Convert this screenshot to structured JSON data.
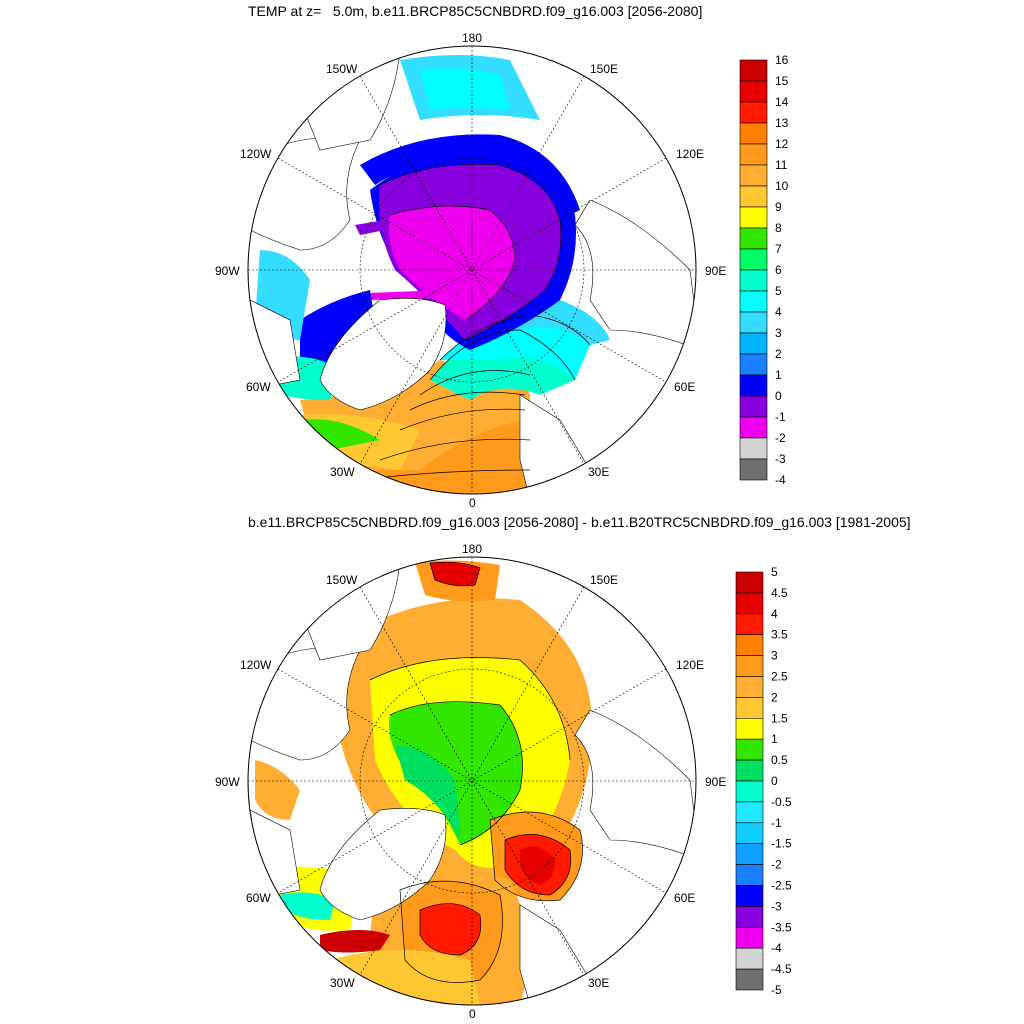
{
  "panel1": {
    "title": "TEMP at z=   5.0m, b.e11.BRCP85C5CNBDRD.f09_g16.003 [2056-2080]",
    "lon_labels": {
      "top": "180",
      "tl": "150W",
      "tr": "150E",
      "ul": "120W",
      "ur": "120E",
      "left": "90W",
      "right": "90E",
      "ll": "60W",
      "lr": "60E",
      "bl": "30W",
      "br": "30E",
      "bottom": "0"
    },
    "colorbar": {
      "labels": [
        "16",
        "15",
        "14",
        "13",
        "12",
        "11",
        "10",
        "9",
        "8",
        "7",
        "6",
        "5",
        "4",
        "3",
        "2",
        "1",
        "0",
        "-1",
        "-2",
        "-3",
        "-4"
      ],
      "colors": [
        "#cc0000",
        "#e60000",
        "#ff1a00",
        "#ff8000",
        "#ff9a1a",
        "#ffad33",
        "#ffc833",
        "#ffff00",
        "#33e600",
        "#00ff66",
        "#00ffcc",
        "#00ffff",
        "#33ddff",
        "#00b3ff",
        "#1a80ff",
        "#0000ff",
        "#8800dd",
        "#ee00ee",
        "#d3d3d3",
        "#707070"
      ]
    }
  },
  "panel2": {
    "title": "b.e11.BRCP85C5CNBDRD.f09_g16.003 [2056-2080] - b.e11.B20TRC5CNBDRD.f09_g16.003 [1981-2005]",
    "lon_labels": {
      "top": "180",
      "tl": "150W",
      "tr": "150E",
      "ul": "120W",
      "ur": "120E",
      "left": "90W",
      "right": "90E",
      "ll": "60W",
      "lr": "60E",
      "bl": "30W",
      "br": "30E",
      "bottom": "0"
    },
    "colorbar": {
      "labels": [
        "5",
        "4.5",
        "4",
        "3.5",
        "3",
        "2.5",
        "2",
        "1.5",
        "1",
        "0.5",
        "0",
        "-0.5",
        "-1",
        "-1.5",
        "-2",
        "-2.5",
        "-3",
        "-3.5",
        "-4",
        "-4.5",
        "-5"
      ],
      "colors": [
        "#cc0000",
        "#e60000",
        "#ff1a00",
        "#ff8000",
        "#ff9a1a",
        "#ffad33",
        "#ffc833",
        "#ffff00",
        "#33e600",
        "#00e060",
        "#00ffcc",
        "#22e8ff",
        "#11ccff",
        "#11a0ff",
        "#1a80ff",
        "#0000ff",
        "#8800dd",
        "#ee00ee",
        "#d3d3d3",
        "#707070"
      ]
    }
  }
}
